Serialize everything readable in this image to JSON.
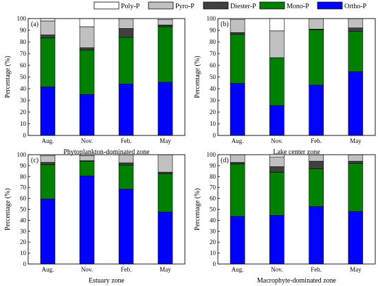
{
  "legend": {
    "placement": "top-center",
    "items": [
      {
        "name": "Poly-P",
        "color": "#ffffff"
      },
      {
        "name": "Pyro-P",
        "color": "#c0c0c0"
      },
      {
        "name": "Diester-P",
        "color": "#404040"
      },
      {
        "name": "Mono-P",
        "color": "#008000"
      },
      {
        "name": "Ortho-P",
        "color": "#0000ff"
      }
    ]
  },
  "chart_data": [
    {
      "type": "bar",
      "stacked": true,
      "panel_label": "(a)",
      "xlabel": "Phytoplankton-dominated zone",
      "ylabel": "Percentage (%)",
      "ylim": [
        0,
        100
      ],
      "yticks": [
        0,
        10,
        20,
        30,
        40,
        50,
        60,
        70,
        80,
        90,
        100
      ],
      "categories": [
        "Aug.",
        "Nov.",
        "Feb.",
        "May"
      ],
      "series": [
        {
          "name": "Ortho-P",
          "values": [
            41.5,
            35,
            44,
            45.5
          ]
        },
        {
          "name": "Mono-P",
          "values": [
            42,
            38,
            40,
            47.5
          ]
        },
        {
          "name": "Diester-P",
          "values": [
            2.5,
            2,
            7.5,
            1.5
          ]
        },
        {
          "name": "Pyro-P",
          "values": [
            12,
            18,
            8.5,
            4.5
          ]
        },
        {
          "name": "Poly-P",
          "values": [
            2,
            7,
            0,
            1
          ]
        }
      ]
    },
    {
      "type": "bar",
      "stacked": true,
      "panel_label": "(b)",
      "xlabel": "Lake center zone",
      "ylabel": "Percentage (%)",
      "ylim": [
        0,
        100
      ],
      "yticks": [
        0,
        10,
        20,
        30,
        40,
        50,
        60,
        70,
        80,
        90,
        100
      ],
      "categories": [
        "Aug.",
        "Nov.",
        "Feb.",
        "May"
      ],
      "series": [
        {
          "name": "Ortho-P",
          "values": [
            44.5,
            25.5,
            43,
            54.5
          ]
        },
        {
          "name": "Mono-P",
          "values": [
            42,
            41,
            47.5,
            34.5
          ]
        },
        {
          "name": "Diester-P",
          "values": [
            1.5,
            0,
            0.5,
            3
          ]
        },
        {
          "name": "Pyro-P",
          "values": [
            11,
            23,
            9,
            8
          ]
        },
        {
          "name": "Poly-P",
          "values": [
            1,
            10.5,
            0,
            0
          ]
        }
      ]
    },
    {
      "type": "bar",
      "stacked": true,
      "panel_label": "(c)",
      "xlabel": "Estuary  zone",
      "ylabel": "Percentage (%)",
      "ylim": [
        0,
        100
      ],
      "yticks": [
        0,
        10,
        20,
        30,
        40,
        50,
        60,
        70,
        80,
        90,
        100
      ],
      "categories": [
        "Aug.",
        "Nov.",
        "Feb.",
        "May"
      ],
      "series": [
        {
          "name": "Ortho-P",
          "values": [
            59.5,
            80.5,
            68.5,
            47.5
          ]
        },
        {
          "name": "Mono-P",
          "values": [
            31.5,
            13.5,
            22,
            35
          ]
        },
        {
          "name": "Diester-P",
          "values": [
            2,
            0.5,
            2,
            1.5
          ]
        },
        {
          "name": "Pyro-P",
          "values": [
            6,
            4.5,
            7.5,
            16
          ]
        },
        {
          "name": "Poly-P",
          "values": [
            1,
            1,
            0,
            0
          ]
        }
      ]
    },
    {
      "type": "bar",
      "stacked": true,
      "panel_label": "(d)",
      "xlabel": "Macrophyte-dominated zone",
      "ylabel": "Percentage (%)",
      "ylim": [
        0,
        100
      ],
      "yticks": [
        0,
        10,
        20,
        30,
        40,
        50,
        60,
        70,
        80,
        90,
        100
      ],
      "categories": [
        "Aug.",
        "Nov.",
        "Feb.",
        "May"
      ],
      "series": [
        {
          "name": "Ortho-P",
          "values": [
            43.5,
            44.5,
            52.5,
            48
          ]
        },
        {
          "name": "Mono-P",
          "values": [
            48,
            39.5,
            34.5,
            44
          ]
        },
        {
          "name": "Diester-P",
          "values": [
            1.5,
            5,
            7,
            2
          ]
        },
        {
          "name": "Pyro-P",
          "values": [
            7,
            9,
            6,
            6
          ]
        },
        {
          "name": "Poly-P",
          "values": [
            0,
            2,
            0,
            0
          ]
        }
      ]
    }
  ]
}
